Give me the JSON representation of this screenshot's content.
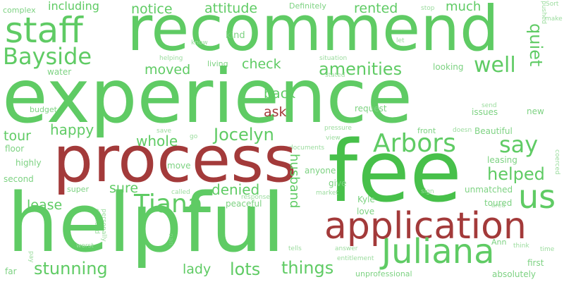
{
  "palette": {
    "green": "#5fcb64",
    "green_light": "#7dd282",
    "green_pale": "#9bdc9e",
    "green_bright": "#47c04a",
    "red": "#a33a3a",
    "background": "#ffffff"
  },
  "words": [
    {
      "text": "complex",
      "color": "green_light"
    },
    {
      "text": "including",
      "color": "green"
    },
    {
      "text": "notice",
      "color": "green"
    },
    {
      "text": "attitude",
      "color": "green"
    },
    {
      "text": "Definitely",
      "color": "green_light"
    },
    {
      "text": "rented",
      "color": "green"
    },
    {
      "text": "much",
      "color": "green"
    },
    {
      "text": "stop",
      "color": "green_pale"
    },
    {
      "text": "Sort",
      "color": "green_pale"
    },
    {
      "text": "pushed",
      "color": "green_pale"
    },
    {
      "text": "make",
      "color": "green_pale"
    },
    {
      "text": "staff",
      "color": "green"
    },
    {
      "text": "recommend",
      "color": "green"
    },
    {
      "text": "kind",
      "color": "green_light"
    },
    {
      "text": "know",
      "color": "green_pale"
    },
    {
      "text": "let",
      "color": "green_pale"
    },
    {
      "text": "quiet",
      "color": "green"
    },
    {
      "text": "Bayside",
      "color": "green"
    },
    {
      "text": "helping",
      "color": "green_pale"
    },
    {
      "text": "situation",
      "color": "green_pale"
    },
    {
      "text": "living",
      "color": "green_light"
    },
    {
      "text": "check",
      "color": "green"
    },
    {
      "text": "amenities",
      "color": "green"
    },
    {
      "text": "looking",
      "color": "green_light"
    },
    {
      "text": "well",
      "color": "green"
    },
    {
      "text": "moved",
      "color": "green"
    },
    {
      "text": "water",
      "color": "green_light"
    },
    {
      "text": "stated",
      "color": "green_pale"
    },
    {
      "text": "experience",
      "color": "green"
    },
    {
      "text": "back",
      "color": "green"
    },
    {
      "text": "ask",
      "color": "red"
    },
    {
      "text": "send",
      "color": "green_pale"
    },
    {
      "text": "budget",
      "color": "green_light"
    },
    {
      "text": "request",
      "color": "green_light"
    },
    {
      "text": "issues",
      "color": "green_light"
    },
    {
      "text": "new",
      "color": "green_light"
    },
    {
      "text": "happy",
      "color": "green"
    },
    {
      "text": "Jocelyn",
      "color": "green"
    },
    {
      "text": "pressure",
      "color": "green_pale"
    },
    {
      "text": "front",
      "color": "green_light"
    },
    {
      "text": "doesn",
      "color": "green_pale"
    },
    {
      "text": "Beautiful",
      "color": "green_light"
    },
    {
      "text": "Arbors",
      "color": "green"
    },
    {
      "text": "say",
      "color": "green"
    },
    {
      "text": "tour",
      "color": "green"
    },
    {
      "text": "whole",
      "color": "green"
    },
    {
      "text": "save",
      "color": "green_pale"
    },
    {
      "text": "go",
      "color": "green_pale"
    },
    {
      "text": "view",
      "color": "green_pale"
    },
    {
      "text": "documents",
      "color": "green_pale"
    },
    {
      "text": "floor",
      "color": "green_light"
    },
    {
      "text": "process",
      "color": "red"
    },
    {
      "text": "fee",
      "color": "green_bright"
    },
    {
      "text": "us",
      "color": "green"
    },
    {
      "text": "helped",
      "color": "green"
    },
    {
      "text": "coerced",
      "color": "green_pale"
    },
    {
      "text": "highly",
      "color": "green_light"
    },
    {
      "text": "move",
      "color": "green_light"
    },
    {
      "text": "husband",
      "color": "green"
    },
    {
      "text": "anyone",
      "color": "green_light"
    },
    {
      "text": "leasing",
      "color": "green_light"
    },
    {
      "text": "second",
      "color": "green_light"
    },
    {
      "text": "sure",
      "color": "green"
    },
    {
      "text": "Tiana",
      "color": "green"
    },
    {
      "text": "denied",
      "color": "green"
    },
    {
      "text": "give",
      "color": "green_light"
    },
    {
      "text": "unmatched",
      "color": "green_light"
    },
    {
      "text": "super",
      "color": "green_light"
    },
    {
      "text": "called",
      "color": "green_pale"
    },
    {
      "text": "response",
      "color": "green_pale"
    },
    {
      "text": "market",
      "color": "green_pale"
    },
    {
      "text": "sign",
      "color": "green_pale"
    },
    {
      "text": "toured",
      "color": "green_light"
    },
    {
      "text": "area",
      "color": "green_pale"
    },
    {
      "text": "lease",
      "color": "green"
    },
    {
      "text": "decided",
      "color": "green_pale"
    },
    {
      "text": "personally",
      "color": "green_pale"
    },
    {
      "text": "peaceful",
      "color": "green_light"
    },
    {
      "text": "Kyle",
      "color": "green_light"
    },
    {
      "text": "love",
      "color": "green_light"
    },
    {
      "text": "application",
      "color": "red"
    },
    {
      "text": "helpful",
      "color": "green"
    },
    {
      "text": "nan",
      "color": "green_light"
    },
    {
      "text": "Ann",
      "color": "green_light"
    },
    {
      "text": "think",
      "color": "green_pale"
    },
    {
      "text": "worst",
      "color": "green_pale"
    },
    {
      "text": "time",
      "color": "green_pale"
    },
    {
      "text": "pay",
      "color": "green_pale"
    },
    {
      "text": "Juliana",
      "color": "green"
    },
    {
      "text": "first",
      "color": "green_light"
    },
    {
      "text": "stunning",
      "color": "green"
    },
    {
      "text": "lady",
      "color": "green"
    },
    {
      "text": "lots",
      "color": "green"
    },
    {
      "text": "things",
      "color": "green"
    },
    {
      "text": "tells",
      "color": "green_pale"
    },
    {
      "text": "answer",
      "color": "green_pale"
    },
    {
      "text": "entitlement",
      "color": "green_pale"
    },
    {
      "text": "unprofessional",
      "color": "green_light"
    },
    {
      "text": "absolutely",
      "color": "green_light"
    },
    {
      "text": "far",
      "color": "green_light"
    }
  ]
}
